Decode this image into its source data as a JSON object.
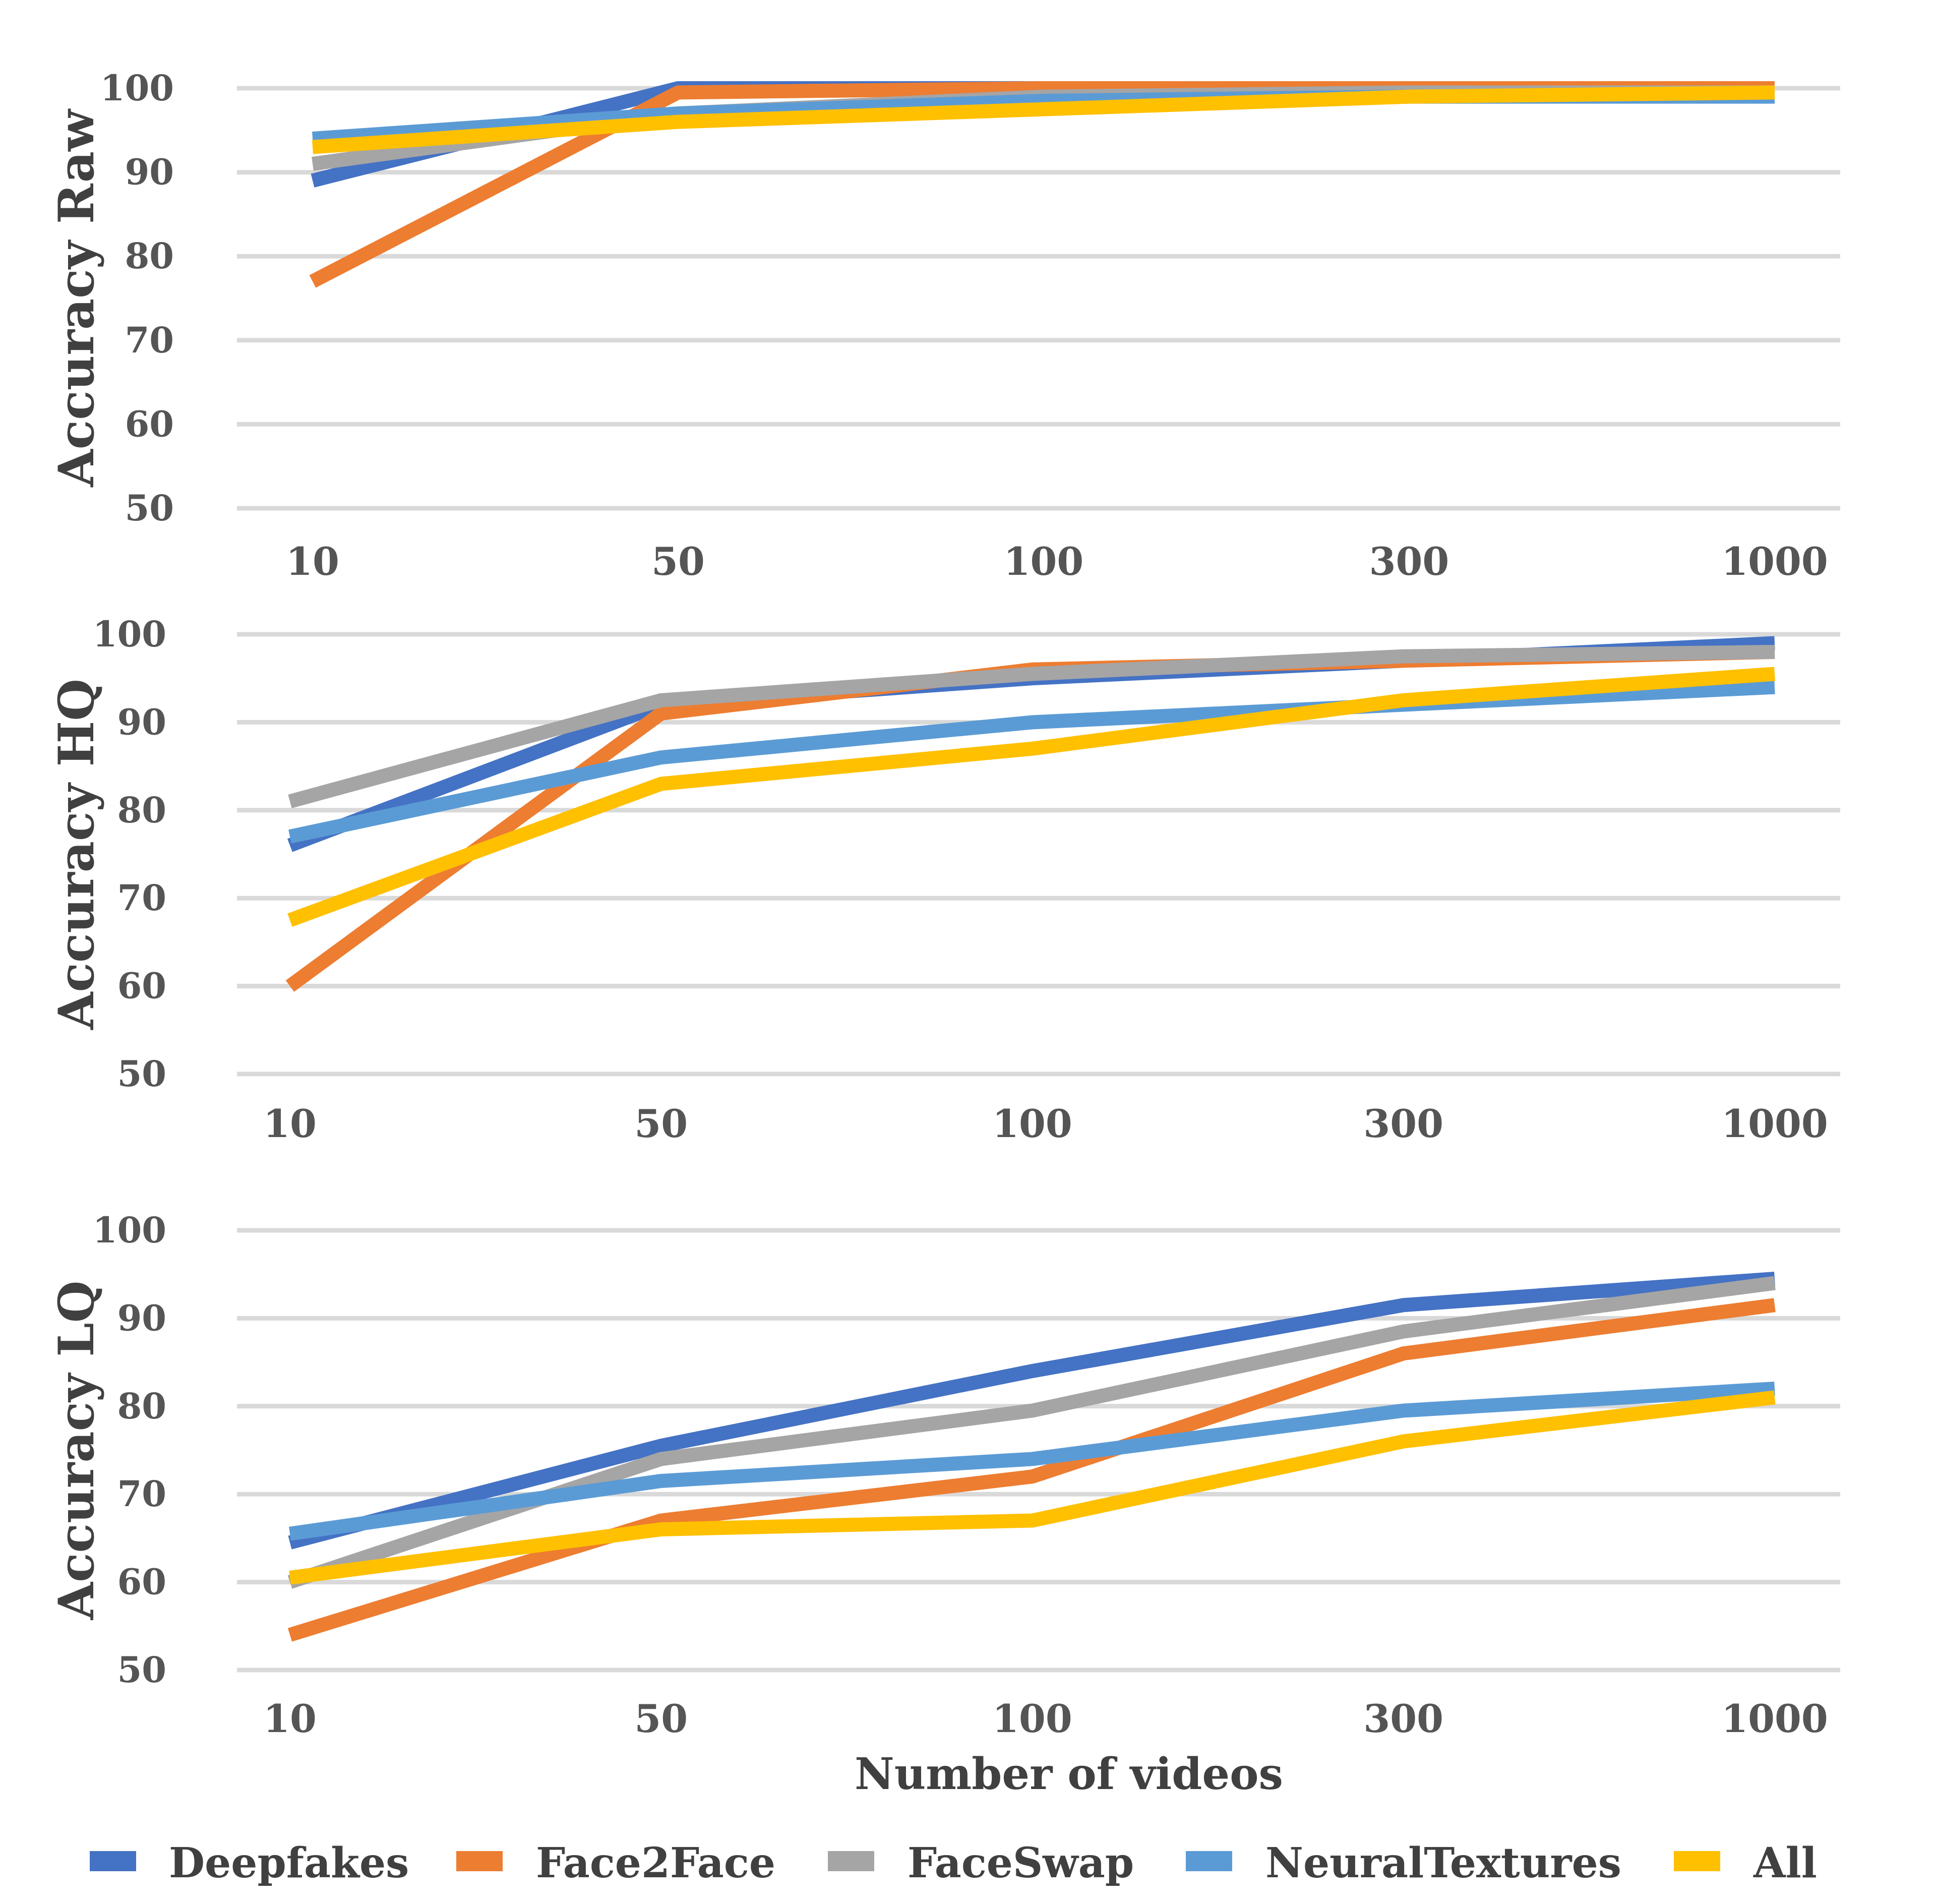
{
  "chart_data": [
    {
      "type": "line",
      "ylabel": "Accuracy Raw",
      "xlabel": "",
      "categories": [
        "10",
        "50",
        "100",
        "300",
        "1000"
      ],
      "ylim": [
        50,
        100
      ],
      "yticks": [
        "50",
        "60",
        "70",
        "80",
        "90",
        "100"
      ],
      "grid": true,
      "series": [
        {
          "name": "Deepfakes",
          "values": [
            89,
            100,
            100,
            100,
            100
          ]
        },
        {
          "name": "Face2Face",
          "values": [
            77,
            99.5,
            100,
            100,
            100
          ]
        },
        {
          "name": "FaceSwap",
          "values": [
            91,
            97,
            99,
            99.5,
            99.5
          ]
        },
        {
          "name": "NeuralTextures",
          "values": [
            94,
            97,
            98.5,
            99,
            99
          ]
        },
        {
          "name": "All",
          "values": [
            93,
            96,
            97.5,
            99,
            99.5
          ]
        }
      ]
    },
    {
      "type": "line",
      "ylabel": "Accuracy HQ",
      "xlabel": "",
      "categories": [
        "10",
        "50",
        "100",
        "300",
        "1000"
      ],
      "ylim": [
        50,
        100
      ],
      "yticks": [
        "50",
        "60",
        "70",
        "80",
        "90",
        "100"
      ],
      "grid": true,
      "series": [
        {
          "name": "Deepfakes",
          "values": [
            76,
            92,
            95,
            97,
            99
          ]
        },
        {
          "name": "Face2Face",
          "values": [
            60,
            91,
            96,
            97,
            98
          ]
        },
        {
          "name": "FaceSwap",
          "values": [
            81,
            92.5,
            95.5,
            97.5,
            98
          ]
        },
        {
          "name": "NeuralTextures",
          "values": [
            77,
            86,
            90,
            92,
            94
          ]
        },
        {
          "name": "All",
          "values": [
            67.5,
            83,
            87,
            92.5,
            95.5
          ]
        }
      ]
    },
    {
      "type": "line",
      "ylabel": "Accuracy LQ",
      "xlabel": "Number of videos",
      "categories": [
        "10",
        "50",
        "100",
        "300",
        "1000"
      ],
      "ylim": [
        50,
        100
      ],
      "yticks": [
        "50",
        "60",
        "70",
        "80",
        "90",
        "100"
      ],
      "grid": true,
      "series": [
        {
          "name": "Deepfakes",
          "values": [
            64.5,
            75.5,
            84,
            91.5,
            94.5
          ]
        },
        {
          "name": "Face2Face",
          "values": [
            54,
            67,
            72,
            86,
            91.5
          ]
        },
        {
          "name": "FaceSwap",
          "values": [
            60,
            74,
            79.5,
            88.5,
            94
          ]
        },
        {
          "name": "NeuralTextures",
          "values": [
            65.5,
            71.5,
            74,
            79.5,
            82
          ]
        },
        {
          "name": "All",
          "values": [
            60.5,
            66,
            67,
            76,
            81
          ]
        }
      ]
    }
  ],
  "legend": {
    "placement": "bottom",
    "items": [
      {
        "label": "Deepfakes",
        "color": "#4472c4"
      },
      {
        "label": "Face2Face",
        "color": "#ed7d31"
      },
      {
        "label": "FaceSwap",
        "color": "#a5a5a5"
      },
      {
        "label": "NeuralTextures",
        "color": "#5b9bd5"
      },
      {
        "label": "All",
        "color": "#ffc000"
      }
    ]
  },
  "colors": {
    "grid": "#d9d9d9",
    "text": "#555555"
  }
}
